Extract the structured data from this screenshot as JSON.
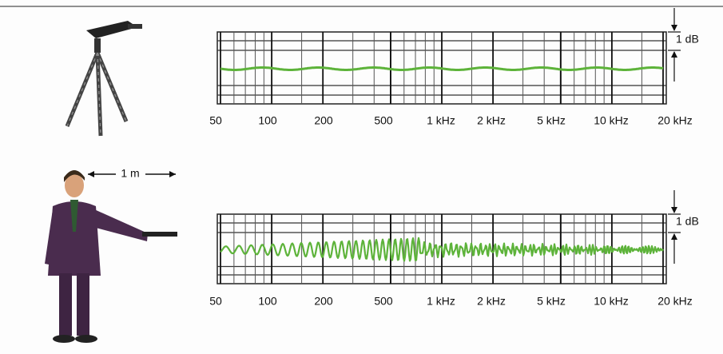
{
  "top_chart": {
    "x_labels": [
      "50",
      "100",
      "200",
      "500",
      "1 kHz",
      "2 kHz",
      "5 kHz",
      "10 kHz",
      "20 kHz"
    ],
    "scale_label": "1 dB"
  },
  "bottom_chart": {
    "x_labels": [
      "50",
      "100",
      "200",
      "500",
      "1 kHz",
      "2 kHz",
      "5 kHz",
      "10 kHz",
      "20 kHz"
    ],
    "scale_label": "1 dB"
  },
  "distance_label": "1 m"
}
